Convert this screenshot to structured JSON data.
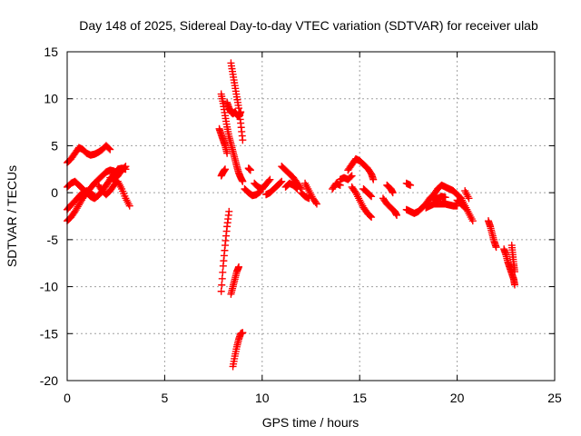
{
  "chart_data": {
    "type": "scatter",
    "title": "Day 148 of 2025, Sidereal Day-to-day VTEC variation (SDTVAR) for receiver ulab",
    "xlabel": "GPS time / hours",
    "ylabel": "SDTVAR / TECUs",
    "xlim": [
      0,
      25
    ],
    "ylim": [
      -20,
      15
    ],
    "xticks": [
      0,
      5,
      10,
      15,
      20,
      25
    ],
    "yticks": [
      -20,
      -15,
      -10,
      -5,
      0,
      5,
      10,
      15
    ],
    "grid": true,
    "marker": "+",
    "series": [
      {
        "name": "SDTVAR",
        "color": "#ff0000",
        "tracks": [
          [
            [
              0.0,
              3.2
            ],
            [
              0.2,
              3.6
            ],
            [
              0.4,
              4.2
            ],
            [
              0.6,
              4.8
            ],
            [
              0.8,
              4.6
            ],
            [
              1.0,
              4.2
            ],
            [
              1.2,
              4.0
            ],
            [
              1.4,
              4.1
            ],
            [
              1.6,
              4.3
            ],
            [
              1.8,
              4.6
            ],
            [
              2.0,
              5.0
            ],
            [
              2.2,
              4.6
            ]
          ],
          [
            [
              0.0,
              -3.0
            ],
            [
              0.2,
              -2.6
            ],
            [
              0.4,
              -2.0
            ],
            [
              0.6,
              -1.3
            ],
            [
              0.8,
              -0.6
            ],
            [
              1.0,
              0.0
            ],
            [
              1.2,
              0.5
            ],
            [
              1.4,
              1.0
            ],
            [
              1.6,
              1.4
            ],
            [
              1.8,
              1.8
            ],
            [
              2.0,
              2.2
            ],
            [
              2.2,
              2.4
            ],
            [
              2.4,
              2.3
            ],
            [
              2.6,
              2.0
            ]
          ],
          [
            [
              0.0,
              0.6
            ],
            [
              0.2,
              1.0
            ],
            [
              0.4,
              1.2
            ],
            [
              0.6,
              0.8
            ],
            [
              0.8,
              0.4
            ],
            [
              1.0,
              0.0
            ],
            [
              1.2,
              -0.4
            ],
            [
              1.4,
              -0.6
            ],
            [
              1.6,
              -0.3
            ],
            [
              1.8,
              0.2
            ],
            [
              2.0,
              0.8
            ],
            [
              2.2,
              1.4
            ],
            [
              2.4,
              2.0
            ],
            [
              2.6,
              2.5
            ],
            [
              2.8,
              2.6
            ],
            [
              3.0,
              2.5
            ]
          ],
          [
            [
              0.0,
              -1.8
            ],
            [
              0.2,
              -1.3
            ],
            [
              0.4,
              -0.9
            ],
            [
              0.6,
              -0.4
            ],
            [
              0.8,
              0.0
            ],
            [
              1.0,
              0.2
            ],
            [
              1.2,
              0.0
            ],
            [
              1.4,
              -0.4
            ]
          ],
          [
            [
              1.6,
              0.8
            ],
            [
              1.8,
              0.2
            ],
            [
              2.0,
              -0.2
            ],
            [
              2.2,
              0.2
            ],
            [
              2.4,
              0.8
            ],
            [
              2.6,
              1.2
            ],
            [
              2.8,
              0.4
            ],
            [
              3.0,
              -0.6
            ],
            [
              3.2,
              -1.4
            ]
          ],
          [
            [
              2.2,
              1.6
            ],
            [
              2.4,
              1.4
            ],
            [
              2.6,
              1.8
            ],
            [
              2.8,
              2.4
            ],
            [
              3.0,
              2.8
            ]
          ],
          [
            [
              7.9,
              10.5
            ],
            [
              8.0,
              9.5
            ],
            [
              8.1,
              8.2
            ],
            [
              8.2,
              7.0
            ],
            [
              8.3,
              6.0
            ],
            [
              8.4,
              5.2
            ],
            [
              8.5,
              4.4
            ],
            [
              8.6,
              3.6
            ],
            [
              8.7,
              2.8
            ],
            [
              8.8,
              2.1
            ],
            [
              8.9,
              1.6
            ],
            [
              9.0,
              1.2
            ]
          ],
          [
            [
              7.8,
              6.8
            ],
            [
              7.9,
              6.2
            ],
            [
              8.0,
              5.6
            ],
            [
              8.1,
              5.0
            ],
            [
              8.2,
              4.2
            ]
          ],
          [
            [
              8.4,
              13.8
            ],
            [
              8.5,
              12.6
            ],
            [
              8.6,
              11.4
            ],
            [
              8.7,
              10.2
            ],
            [
              8.8,
              9.0
            ],
            [
              8.9,
              7.4
            ],
            [
              9.0,
              5.6
            ]
          ],
          [
            [
              8.2,
              9.6
            ],
            [
              8.3,
              9.0
            ],
            [
              8.4,
              8.6
            ],
            [
              8.5,
              8.4
            ],
            [
              8.6,
              8.6
            ],
            [
              8.7,
              8.3
            ],
            [
              8.8,
              8.1
            ],
            [
              8.9,
              8.6
            ]
          ],
          [
            [
              8.3,
              -2.0
            ],
            [
              8.2,
              -3.6
            ],
            [
              8.1,
              -5.6
            ],
            [
              8.0,
              -7.8
            ],
            [
              7.9,
              -10.5
            ]
          ],
          [
            [
              8.4,
              -10.8
            ],
            [
              8.5,
              -10.0
            ],
            [
              8.6,
              -9.2
            ],
            [
              8.7,
              -8.4
            ],
            [
              8.8,
              -7.9
            ]
          ],
          [
            [
              8.5,
              -18.5
            ],
            [
              8.6,
              -17.4
            ],
            [
              8.7,
              -16.4
            ],
            [
              8.8,
              -15.6
            ],
            [
              8.9,
              -15.0
            ],
            [
              9.0,
              -14.9
            ]
          ],
          [
            [
              7.9,
              1.8
            ],
            [
              8.0,
              2.2
            ],
            [
              8.1,
              2.5
            ]
          ],
          [
            [
              9.3,
              2.6
            ],
            [
              9.4,
              2.4
            ]
          ],
          [
            [
              9.1,
              0.4
            ],
            [
              9.3,
              0.0
            ],
            [
              9.5,
              -0.3
            ],
            [
              9.7,
              -0.2
            ],
            [
              9.9,
              0.1
            ]
          ],
          [
            [
              9.6,
              1.0
            ],
            [
              9.8,
              0.6
            ],
            [
              10.0,
              0.4
            ],
            [
              10.2,
              0.9
            ],
            [
              10.4,
              1.4
            ]
          ],
          [
            [
              10.2,
              -0.2
            ],
            [
              10.4,
              0.0
            ],
            [
              10.6,
              0.4
            ],
            [
              10.8,
              0.8
            ],
            [
              11.0,
              1.2
            ]
          ],
          [
            [
              11.0,
              2.8
            ],
            [
              11.2,
              2.4
            ],
            [
              11.4,
              2.0
            ],
            [
              11.6,
              1.6
            ],
            [
              11.8,
              1.0
            ],
            [
              12.0,
              0.4
            ]
          ],
          [
            [
              11.2,
              0.6
            ],
            [
              11.4,
              1.0
            ],
            [
              11.6,
              0.8
            ],
            [
              11.8,
              0.4
            ]
          ],
          [
            [
              12.2,
              1.0
            ],
            [
              12.4,
              0.2
            ],
            [
              12.6,
              -0.6
            ],
            [
              12.8,
              -1.2
            ]
          ],
          [
            [
              12.0,
              0.0
            ],
            [
              12.2,
              -0.4
            ],
            [
              12.4,
              -0.6
            ]
          ],
          [
            [
              13.6,
              0.4
            ],
            [
              13.8,
              1.0
            ],
            [
              14.0,
              0.8
            ]
          ],
          [
            [
              14.0,
              1.4
            ],
            [
              14.2,
              1.6
            ],
            [
              14.4,
              1.4
            ],
            [
              14.6,
              1.8
            ]
          ],
          [
            [
              14.4,
              2.4
            ],
            [
              14.6,
              3.0
            ],
            [
              14.8,
              3.6
            ],
            [
              15.0,
              3.4
            ],
            [
              15.2,
              3.0
            ],
            [
              15.4,
              2.6
            ],
            [
              15.6,
              2.0
            ],
            [
              15.7,
              1.4
            ]
          ],
          [
            [
              14.6,
              0.6
            ],
            [
              14.8,
              0.0
            ],
            [
              15.0,
              -0.8
            ],
            [
              15.2,
              -1.6
            ],
            [
              15.4,
              -2.2
            ],
            [
              15.6,
              -2.6
            ]
          ],
          [
            [
              15.2,
              0.4
            ],
            [
              15.4,
              0.0
            ],
            [
              15.6,
              -0.4
            ]
          ],
          [
            [
              16.4,
              0.8
            ],
            [
              16.6,
              0.4
            ],
            [
              16.7,
              0.0
            ]
          ],
          [
            [
              16.2,
              -0.6
            ],
            [
              16.4,
              -1.2
            ],
            [
              16.6,
              -1.6
            ],
            [
              16.8,
              -2.0
            ],
            [
              16.9,
              -2.4
            ]
          ],
          [
            [
              17.4,
              1.0
            ],
            [
              17.6,
              0.8
            ]
          ],
          [
            [
              17.4,
              -1.8
            ],
            [
              17.6,
              -2.0
            ],
            [
              17.8,
              -2.2
            ],
            [
              18.0,
              -2.0
            ],
            [
              18.2,
              -1.6
            ],
            [
              18.4,
              -1.2
            ],
            [
              18.6,
              -0.6
            ],
            [
              18.8,
              -0.2
            ],
            [
              19.0,
              0.4
            ],
            [
              19.2,
              0.8
            ],
            [
              19.4,
              0.6
            ],
            [
              19.6,
              0.4
            ],
            [
              19.8,
              0.2
            ],
            [
              20.0,
              -0.2
            ],
            [
              20.2,
              -0.6
            ]
          ],
          [
            [
              18.4,
              -1.6
            ],
            [
              18.6,
              -1.4
            ],
            [
              18.8,
              -1.2
            ],
            [
              19.0,
              -1.2
            ],
            [
              19.2,
              -1.2
            ],
            [
              19.4,
              -1.2
            ],
            [
              19.6,
              -1.3
            ],
            [
              19.8,
              -1.4
            ],
            [
              20.0,
              -1.4
            ]
          ],
          [
            [
              18.8,
              -0.8
            ],
            [
              19.0,
              -0.6
            ],
            [
              19.2,
              -0.4
            ],
            [
              19.4,
              -0.5
            ]
          ],
          [
            [
              20.0,
              -0.8
            ],
            [
              20.2,
              -1.2
            ],
            [
              20.4,
              -1.6
            ]
          ],
          [
            [
              20.2,
              -0.6
            ],
            [
              20.4,
              -1.4
            ],
            [
              20.6,
              -2.2
            ],
            [
              20.8,
              -3.0
            ]
          ],
          [
            [
              20.4,
              0.2
            ],
            [
              20.6,
              -0.6
            ]
          ],
          [
            [
              21.6,
              -3.0
            ],
            [
              21.7,
              -3.6
            ],
            [
              21.8,
              -4.4
            ],
            [
              21.9,
              -5.2
            ],
            [
              22.0,
              -5.8
            ]
          ],
          [
            [
              22.4,
              -6.0
            ],
            [
              22.5,
              -6.6
            ],
            [
              22.6,
              -7.4
            ],
            [
              22.7,
              -8.0
            ],
            [
              22.8,
              -8.6
            ],
            [
              22.9,
              -9.2
            ],
            [
              22.95,
              -9.8
            ]
          ],
          [
            [
              22.8,
              -5.6
            ],
            [
              22.85,
              -6.6
            ],
            [
              22.9,
              -7.6
            ],
            [
              22.95,
              -8.4
            ]
          ]
        ]
      }
    ]
  }
}
